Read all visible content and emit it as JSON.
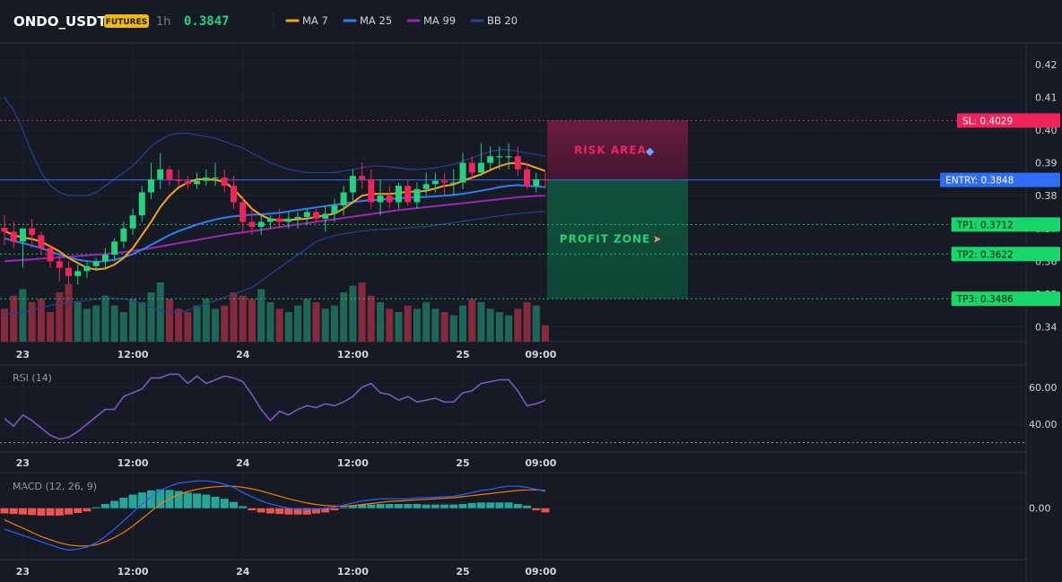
{
  "header": {
    "symbol": "ONDO_USDT",
    "badge": "FUTURES",
    "timeframe": "1h",
    "last_price": "0.3847"
  },
  "colors": {
    "bg": "#161a25",
    "up": "#26d07c",
    "down": "#f0245c",
    "ma7": "#f7a21b",
    "ma25": "#2f7df6",
    "ma99": "#9c27b0",
    "bb": "#2a3f8f",
    "rsi": "#7e57c2",
    "macd_line": "#2962ff",
    "signal_line": "#f57c00",
    "hist_up": "#26a69a",
    "hist_down": "#ef5350",
    "sl": "#f0245c",
    "entry": "#2f6df6",
    "tp": "#17d66a",
    "badge": "#f0b90b"
  },
  "legend": [
    {
      "label": "MA 7",
      "color": "#f7a21b"
    },
    {
      "label": "MA 25",
      "color": "#2f7df6"
    },
    {
      "label": "MA 99",
      "color": "#9c27b0"
    },
    {
      "label": "BB 20",
      "color": "#2a3f8f"
    }
  ],
  "time_labels": [
    "23",
    "12:00",
    "24",
    "12:00",
    "25",
    "09:00"
  ],
  "time_label_index": [
    2,
    14,
    26,
    38,
    50,
    58.5
  ],
  "chart_data": [
    {
      "type": "candlestick",
      "title": "ONDO_USDT",
      "y_ticks": [
        "0.42",
        "0.41",
        "0.40",
        "0.39",
        "0.38",
        "0.37",
        "0.36",
        "0.35",
        "0.34"
      ],
      "y_tick_values": [
        0.42,
        0.41,
        0.4,
        0.39,
        0.38,
        0.37,
        0.36,
        0.35,
        0.34
      ],
      "ylim": [
        0.3355,
        0.4265
      ],
      "bars": 60,
      "open": [
        0.3702,
        0.369,
        0.366,
        0.37,
        0.368,
        0.364,
        0.36,
        0.358,
        0.3555,
        0.357,
        0.3585,
        0.36,
        0.362,
        0.366,
        0.37,
        0.374,
        0.381,
        0.385,
        0.388,
        0.385,
        0.3845,
        0.3835,
        0.3845,
        0.3855,
        0.3855,
        0.383,
        0.378,
        0.372,
        0.3705,
        0.372,
        0.373,
        0.372,
        0.373,
        0.3735,
        0.375,
        0.373,
        0.3745,
        0.377,
        0.381,
        0.386,
        0.385,
        0.378,
        0.38,
        0.378,
        0.383,
        0.378,
        0.382,
        0.3835,
        0.3845,
        0.384,
        0.384,
        0.39,
        0.387,
        0.39,
        0.392,
        0.392,
        0.392,
        0.388,
        0.383,
        0.385
      ],
      "high": [
        0.374,
        0.372,
        0.37,
        0.373,
        0.369,
        0.365,
        0.362,
        0.36,
        0.359,
        0.36,
        0.361,
        0.364,
        0.367,
        0.372,
        0.376,
        0.383,
        0.39,
        0.393,
        0.389,
        0.388,
        0.386,
        0.387,
        0.388,
        0.39,
        0.388,
        0.386,
        0.38,
        0.376,
        0.374,
        0.374,
        0.376,
        0.375,
        0.375,
        0.376,
        0.376,
        0.377,
        0.379,
        0.383,
        0.388,
        0.39,
        0.388,
        0.385,
        0.383,
        0.384,
        0.385,
        0.384,
        0.387,
        0.387,
        0.387,
        0.388,
        0.393,
        0.392,
        0.396,
        0.395,
        0.395,
        0.396,
        0.395,
        0.39,
        0.387,
        0.387
      ],
      "low": [
        0.365,
        0.364,
        0.358,
        0.364,
        0.362,
        0.358,
        0.354,
        0.353,
        0.353,
        0.355,
        0.357,
        0.358,
        0.36,
        0.364,
        0.368,
        0.372,
        0.379,
        0.382,
        0.383,
        0.383,
        0.382,
        0.382,
        0.383,
        0.383,
        0.381,
        0.376,
        0.369,
        0.368,
        0.368,
        0.37,
        0.37,
        0.37,
        0.37,
        0.371,
        0.372,
        0.369,
        0.372,
        0.374,
        0.378,
        0.382,
        0.376,
        0.374,
        0.376,
        0.376,
        0.377,
        0.376,
        0.38,
        0.381,
        0.38,
        0.38,
        0.382,
        0.385,
        0.386,
        0.388,
        0.388,
        0.388,
        0.386,
        0.382,
        0.381,
        0.382
      ],
      "close": [
        0.369,
        0.366,
        0.37,
        0.368,
        0.364,
        0.36,
        0.358,
        0.3555,
        0.357,
        0.3585,
        0.36,
        0.362,
        0.366,
        0.37,
        0.374,
        0.381,
        0.385,
        0.388,
        0.385,
        0.3845,
        0.3835,
        0.3845,
        0.3855,
        0.3855,
        0.383,
        0.378,
        0.372,
        0.3705,
        0.372,
        0.373,
        0.372,
        0.373,
        0.3735,
        0.375,
        0.373,
        0.3745,
        0.377,
        0.381,
        0.386,
        0.385,
        0.378,
        0.38,
        0.378,
        0.383,
        0.378,
        0.382,
        0.3835,
        0.3845,
        0.384,
        0.384,
        0.39,
        0.387,
        0.39,
        0.392,
        0.392,
        0.392,
        0.388,
        0.383,
        0.385,
        0.3847
      ],
      "volume": [
        20,
        28,
        32,
        24,
        26,
        18,
        30,
        35,
        24,
        20,
        22,
        28,
        22,
        18,
        26,
        24,
        30,
        36,
        26,
        20,
        18,
        22,
        26,
        20,
        22,
        30,
        28,
        26,
        32,
        24,
        20,
        18,
        22,
        26,
        24,
        20,
        22,
        30,
        34,
        36,
        28,
        24,
        20,
        18,
        22,
        20,
        24,
        20,
        18,
        16,
        22,
        26,
        24,
        20,
        18,
        16,
        20,
        24,
        22,
        10
      ],
      "ma7": [
        0.3692,
        0.368,
        0.3672,
        0.3668,
        0.366,
        0.3645,
        0.363,
        0.361,
        0.3595,
        0.358,
        0.3575,
        0.3578,
        0.359,
        0.361,
        0.364,
        0.368,
        0.372,
        0.3765,
        0.38,
        0.3825,
        0.384,
        0.385,
        0.385,
        0.3848,
        0.3842,
        0.382,
        0.379,
        0.376,
        0.374,
        0.3728,
        0.3725,
        0.3726,
        0.3728,
        0.373,
        0.3735,
        0.374,
        0.3745,
        0.376,
        0.378,
        0.38,
        0.3805,
        0.3805,
        0.3805,
        0.3808,
        0.3812,
        0.3812,
        0.3815,
        0.3822,
        0.383,
        0.3834,
        0.3845,
        0.3855,
        0.3865,
        0.3878,
        0.389,
        0.3898,
        0.39,
        0.3895,
        0.3885,
        0.3875
      ],
      "ma25": [
        0.367,
        0.3662,
        0.3655,
        0.3648,
        0.364,
        0.363,
        0.362,
        0.3612,
        0.3605,
        0.36,
        0.3598,
        0.36,
        0.3605,
        0.3612,
        0.3622,
        0.3635,
        0.365,
        0.3665,
        0.368,
        0.3692,
        0.3702,
        0.3712,
        0.372,
        0.3727,
        0.3733,
        0.3737,
        0.374,
        0.3742,
        0.3743,
        0.3745,
        0.3748,
        0.3752,
        0.3756,
        0.376,
        0.3764,
        0.3768,
        0.3772,
        0.3776,
        0.378,
        0.3784,
        0.3786,
        0.3788,
        0.379,
        0.3792,
        0.3794,
        0.3795,
        0.3796,
        0.3798,
        0.38,
        0.3802,
        0.3806,
        0.381,
        0.3815,
        0.382,
        0.3826,
        0.383,
        0.3832,
        0.383,
        0.3828,
        0.3826
      ],
      "ma99": [
        0.36,
        0.3602,
        0.3604,
        0.3606,
        0.3608,
        0.361,
        0.3612,
        0.3614,
        0.3616,
        0.3618,
        0.362,
        0.3622,
        0.3625,
        0.3628,
        0.3632,
        0.3636,
        0.364,
        0.3645,
        0.365,
        0.3655,
        0.366,
        0.3665,
        0.367,
        0.3675,
        0.368,
        0.3684,
        0.3688,
        0.3692,
        0.3696,
        0.37,
        0.3704,
        0.3708,
        0.3712,
        0.3716,
        0.372,
        0.3724,
        0.3728,
        0.3732,
        0.3736,
        0.374,
        0.3744,
        0.3748,
        0.3752,
        0.3756,
        0.3759,
        0.3762,
        0.3765,
        0.3768,
        0.3771,
        0.3774,
        0.3777,
        0.378,
        0.3783,
        0.3786,
        0.3789,
        0.3792,
        0.3795,
        0.3797,
        0.3799,
        0.38
      ],
      "bb_upper": [
        0.41,
        0.406,
        0.4,
        0.393,
        0.387,
        0.383,
        0.381,
        0.38,
        0.38,
        0.38,
        0.381,
        0.383,
        0.385,
        0.387,
        0.389,
        0.392,
        0.395,
        0.397,
        0.3985,
        0.399,
        0.399,
        0.3985,
        0.398,
        0.3975,
        0.3965,
        0.3955,
        0.3945,
        0.393,
        0.3915,
        0.39,
        0.389,
        0.388,
        0.3875,
        0.387,
        0.387,
        0.387,
        0.387,
        0.3875,
        0.388,
        0.3885,
        0.389,
        0.389,
        0.3888,
        0.3885,
        0.388,
        0.388,
        0.3882,
        0.3885,
        0.389,
        0.3895,
        0.3905,
        0.3915,
        0.3925,
        0.3935,
        0.394,
        0.394,
        0.3935,
        0.393,
        0.3925,
        0.392
      ],
      "bb_lower": [
        0.344,
        0.344,
        0.3445,
        0.345,
        0.346,
        0.3465,
        0.347,
        0.3475,
        0.3478,
        0.348,
        0.3485,
        0.3487,
        0.3487,
        0.3485,
        0.348,
        0.347,
        0.346,
        0.345,
        0.3445,
        0.3445,
        0.345,
        0.346,
        0.347,
        0.348,
        0.349,
        0.35,
        0.351,
        0.352,
        0.354,
        0.356,
        0.358,
        0.36,
        0.362,
        0.364,
        0.366,
        0.367,
        0.3678,
        0.3684,
        0.3688,
        0.3692,
        0.3695,
        0.3697,
        0.3698,
        0.37,
        0.3702,
        0.3704,
        0.3706,
        0.371,
        0.3714,
        0.3718,
        0.3722,
        0.3726,
        0.373,
        0.3734,
        0.3738,
        0.3742,
        0.3745,
        0.3748,
        0.375,
        0.3752
      ],
      "levels": [
        {
          "label": "SL: 0.4029",
          "value": 0.4029,
          "kind": "sl"
        },
        {
          "label": "ENTRY: 0.3848",
          "value": 0.3848,
          "kind": "entry"
        },
        {
          "label": "TP1: 0.3712",
          "value": 0.3712,
          "kind": "tp"
        },
        {
          "label": "TP2: 0.3622",
          "value": 0.3622,
          "kind": "tp"
        },
        {
          "label": "TP3: 0.3486",
          "value": 0.3486,
          "kind": "tp"
        }
      ],
      "risk_zone": {
        "label": "RISK AREA",
        "from": 0.3848,
        "to": 0.4029
      },
      "profit_zone": {
        "label": "PROFIT ZONE",
        "from": 0.3486,
        "to": 0.3848
      }
    },
    {
      "type": "line",
      "title": "RSI (14)",
      "y_ticks": [
        "60.00",
        "40.00"
      ],
      "y_tick_values": [
        60,
        40
      ],
      "ylim": [
        25,
        72
      ],
      "reference_line": 30,
      "values": [
        43,
        39,
        45,
        42,
        38,
        34,
        32,
        33,
        36,
        40,
        44,
        48,
        48,
        55,
        57,
        59,
        65,
        65,
        67,
        67,
        62,
        66,
        62,
        64,
        66,
        65,
        63,
        56,
        48,
        42,
        47,
        45,
        48,
        50,
        49,
        51,
        50,
        52,
        55,
        60,
        62,
        57,
        56,
        53,
        55,
        52,
        53,
        54,
        52,
        52,
        57,
        58,
        62,
        63,
        64,
        64,
        58,
        50,
        51,
        53
      ]
    },
    {
      "type": "line",
      "title": "MACD (12, 26, 9)",
      "y_ticks": [
        "0.00"
      ],
      "y_tick_values": [
        0
      ],
      "ylim": [
        -0.0098,
        0.0068
      ],
      "macd": [
        -0.004,
        -0.0046,
        -0.0052,
        -0.0058,
        -0.0064,
        -0.007,
        -0.0076,
        -0.008,
        -0.0078,
        -0.0074,
        -0.0066,
        -0.0054,
        -0.004,
        -0.0024,
        -0.0008,
        0.0008,
        0.0022,
        0.0034,
        0.0042,
        0.0048,
        0.005,
        0.0052,
        0.0052,
        0.005,
        0.0046,
        0.004,
        0.003,
        0.0022,
        0.0014,
        0.0008,
        0.0004,
        0.0,
        -0.0002,
        -0.0003,
        -0.0002,
        0.0,
        0.0002,
        0.0006,
        0.001,
        0.0014,
        0.0016,
        0.0018,
        0.0018,
        0.0018,
        0.0018,
        0.002,
        0.002,
        0.0021,
        0.0022,
        0.0023,
        0.0026,
        0.003,
        0.0034,
        0.0036,
        0.004,
        0.0042,
        0.0042,
        0.004,
        0.0036,
        0.0032
      ],
      "signal": [
        -0.0022,
        -0.003,
        -0.0038,
        -0.0046,
        -0.0054,
        -0.006,
        -0.0066,
        -0.007,
        -0.0072,
        -0.0072,
        -0.007,
        -0.0064,
        -0.0056,
        -0.0046,
        -0.0034,
        -0.002,
        -0.0006,
        0.0008,
        0.0018,
        0.0026,
        0.0032,
        0.0036,
        0.0039,
        0.0041,
        0.0042,
        0.0042,
        0.004,
        0.0037,
        0.0033,
        0.0028,
        0.0023,
        0.0018,
        0.0014,
        0.001,
        0.0007,
        0.0005,
        0.0004,
        0.0004,
        0.0005,
        0.0007,
        0.0009,
        0.0011,
        0.0013,
        0.0014,
        0.0015,
        0.0016,
        0.0017,
        0.0018,
        0.0019,
        0.002,
        0.0022,
        0.0024,
        0.0026,
        0.0028,
        0.003,
        0.0032,
        0.0034,
        0.0035,
        0.0035,
        0.0034
      ],
      "histogram": [
        -0.001,
        -0.0011,
        -0.0012,
        -0.0013,
        -0.0014,
        -0.0014,
        -0.0014,
        -0.0012,
        -0.0009,
        -0.0006,
        0.0002,
        0.0008,
        0.0014,
        0.002,
        0.0026,
        0.003,
        0.0034,
        0.0036,
        0.0035,
        0.0033,
        0.003,
        0.0028,
        0.0026,
        0.0022,
        0.0018,
        0.0012,
        0.0004,
        -0.0004,
        -0.0008,
        -0.001,
        -0.0011,
        -0.0012,
        -0.0012,
        -0.0012,
        -0.001,
        -0.0008,
        -0.0004,
        0.0002,
        0.0005,
        0.0007,
        0.0007,
        0.0008,
        0.0008,
        0.0008,
        0.0008,
        0.0008,
        0.0007,
        0.0007,
        0.0007,
        0.0007,
        0.0008,
        0.001,
        0.0011,
        0.0011,
        0.0011,
        0.0011,
        0.0008,
        0.0005,
        -0.0004,
        -0.0008
      ]
    }
  ]
}
